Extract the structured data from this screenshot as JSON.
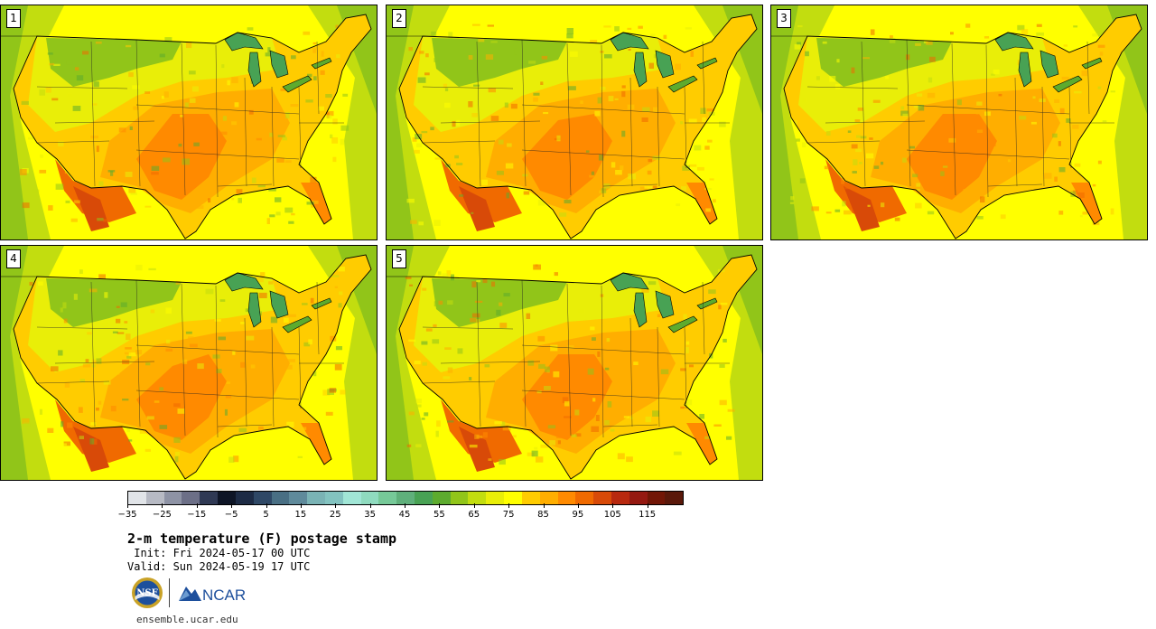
{
  "map": {
    "title": "2-m temperature (F) postage stamp",
    "init": " Init: Fri 2024-05-17 00 UTC",
    "valid": "Valid: Sun 2024-05-19 17 UTC",
    "website": "ensemble.ucar.edu",
    "panels": [
      {
        "id": "1"
      },
      {
        "id": "2"
      },
      {
        "id": "3"
      },
      {
        "id": "4"
      },
      {
        "id": "5"
      }
    ]
  },
  "legend": {
    "min": -35,
    "max": 120,
    "step": 5,
    "tick_labels": [
      "−35",
      "−25",
      "−15",
      "−5",
      "5",
      "15",
      "25",
      "35",
      "45",
      "55",
      "65",
      "75",
      "85",
      "95",
      "105",
      "115"
    ],
    "colors": [
      "#e1e4e8",
      "#b7bac4",
      "#8e93a5",
      "#6c6f87",
      "#2f3954",
      "#0e1526",
      "#1d2b45",
      "#2f4866",
      "#496f84",
      "#5f8a9b",
      "#7ab3b5",
      "#83c3c0",
      "#a1e6d6",
      "#8fdbbf",
      "#76c998",
      "#5fb07b",
      "#48a254",
      "#5dab2e",
      "#91c519",
      "#c2dd0f",
      "#e9ee08",
      "#ffff00",
      "#ffcc00",
      "#ffae00",
      "#ff8a00",
      "#f06a00",
      "#d84a08",
      "#b8290f",
      "#951911",
      "#721606",
      "#5a180a"
    ]
  },
  "logos": {
    "nsf": "NSF",
    "ncar": "NCAR"
  }
}
